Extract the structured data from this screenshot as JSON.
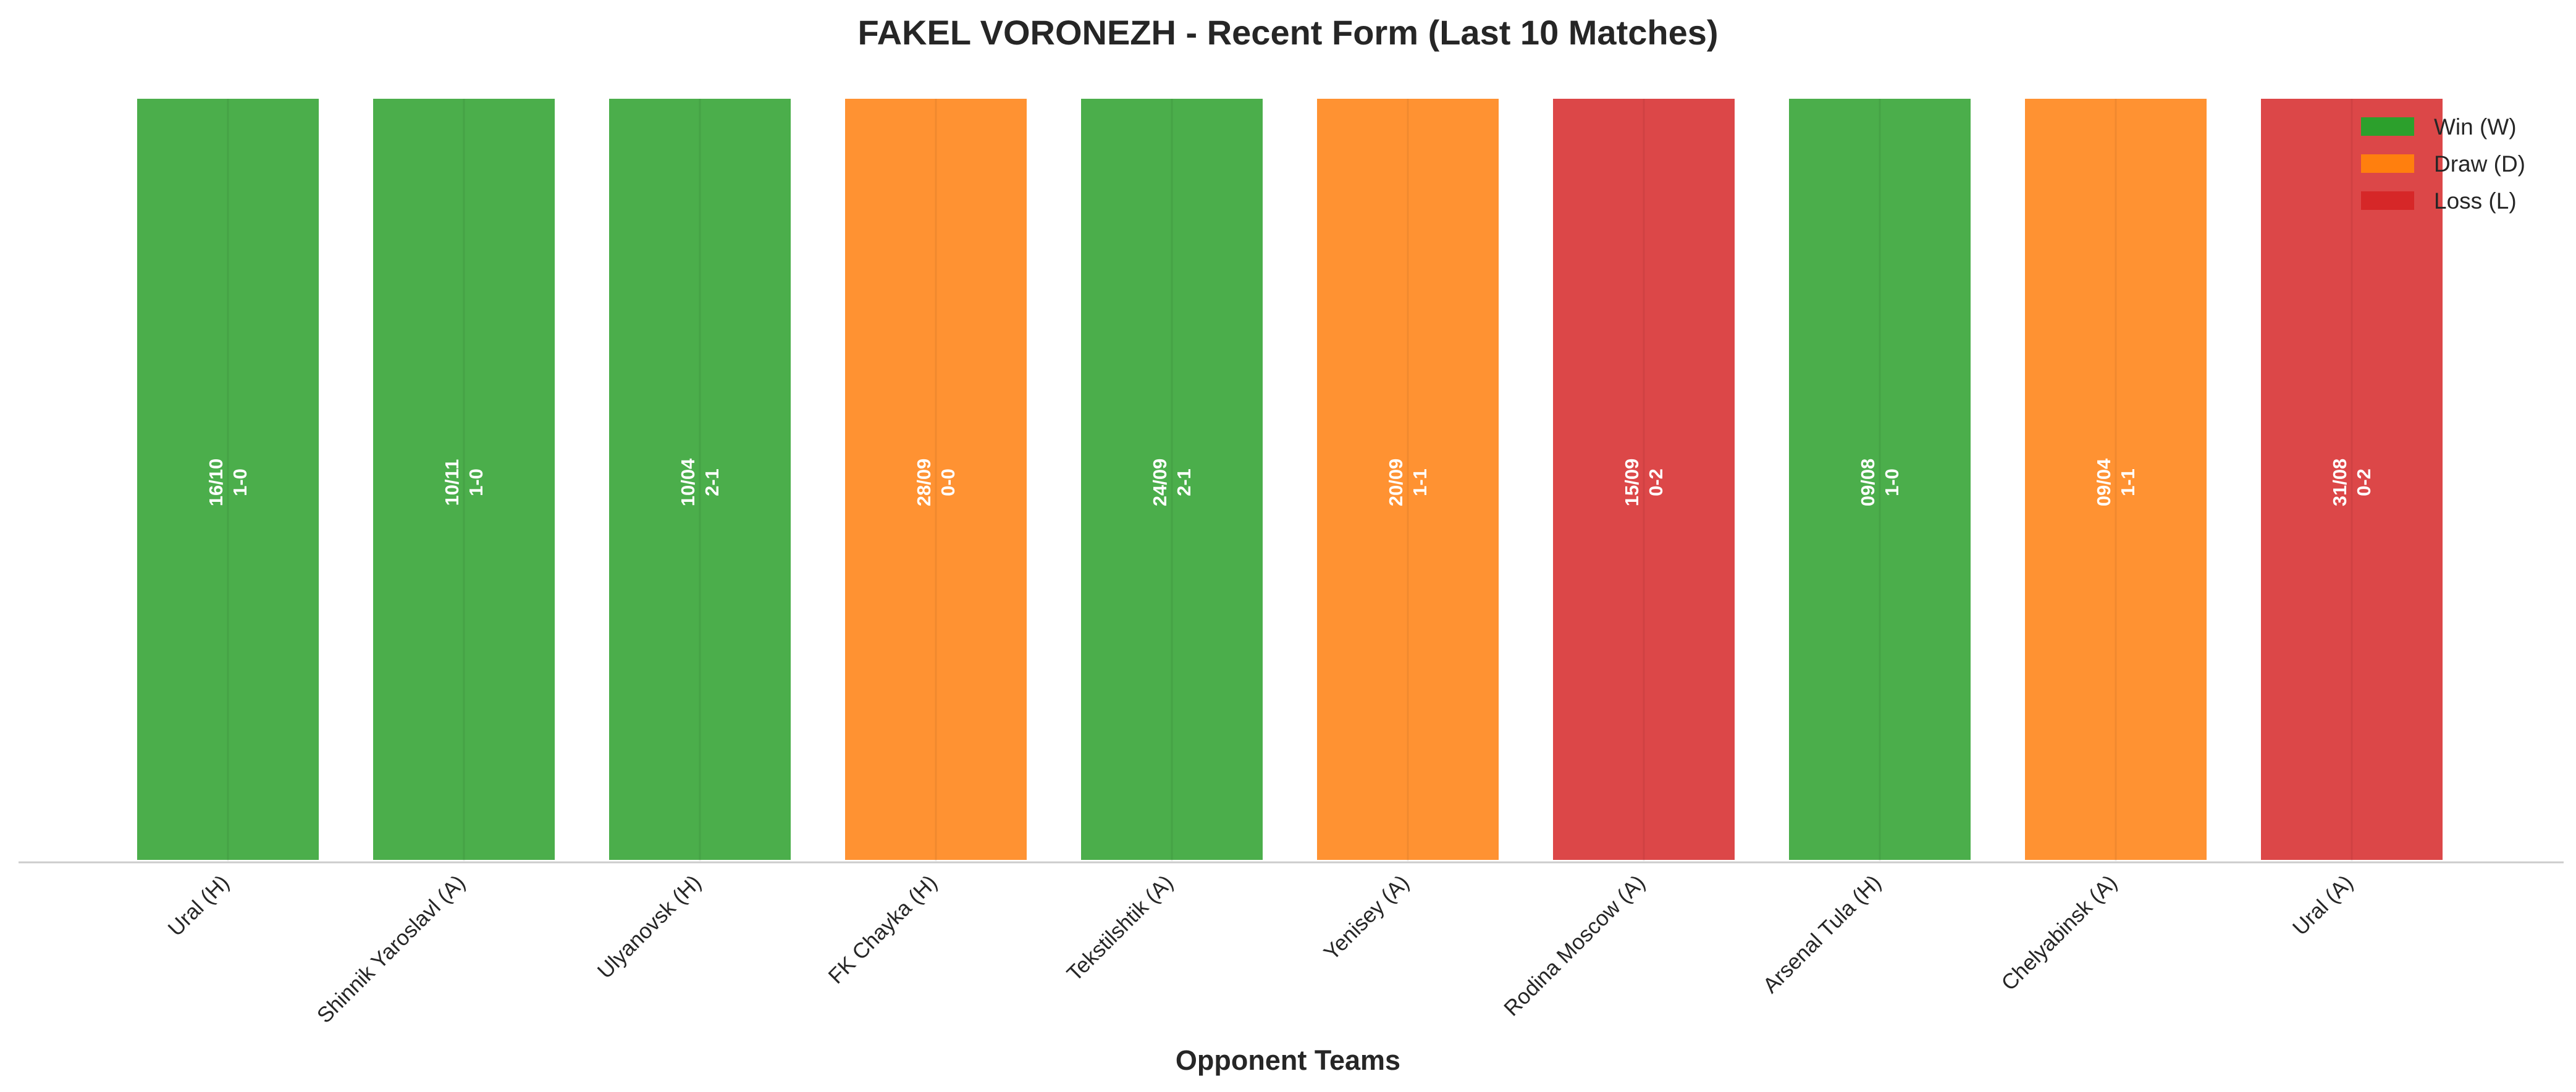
{
  "chart_data": {
    "type": "bar",
    "title": "FAKEL VORONEZH - Recent Form (Last 10 Matches)",
    "xlabel": "Opponent Teams",
    "ylabel": "",
    "categories": [
      "Ural (H)",
      "Shinnik Yaroslavl (A)",
      "Ulyanovsk (H)",
      "FK Chayka (H)",
      "Tekstilshtik (A)",
      "Yenisey (A)",
      "Rodina Moscow (A)",
      "Arsenal Tula (H)",
      "Chelyabinsk (A)",
      "Ural (A)"
    ],
    "values": [
      1,
      1,
      1,
      1,
      1,
      1,
      1,
      1,
      1,
      1
    ],
    "ylim": [
      0,
      1
    ],
    "results": [
      "W",
      "W",
      "W",
      "D",
      "W",
      "D",
      "L",
      "W",
      "D",
      "L"
    ],
    "dates": [
      "16/10",
      "10/11",
      "10/04",
      "28/09",
      "24/09",
      "20/09",
      "15/09",
      "09/08",
      "09/04",
      "31/08"
    ],
    "scores": [
      "1-0",
      "1-0",
      "2-1",
      "0-0",
      "2-1",
      "1-1",
      "0-2",
      "1-0",
      "1-1",
      "0-2"
    ],
    "legend": [
      {
        "key": "W",
        "label": "Win (W)",
        "color": "#2ca02c"
      },
      {
        "key": "D",
        "label": "Draw (D)",
        "color": "#ff7f0e"
      },
      {
        "key": "L",
        "label": "Loss (L)",
        "color": "#d62728"
      }
    ],
    "legend_position": "top-right",
    "grid": false
  }
}
